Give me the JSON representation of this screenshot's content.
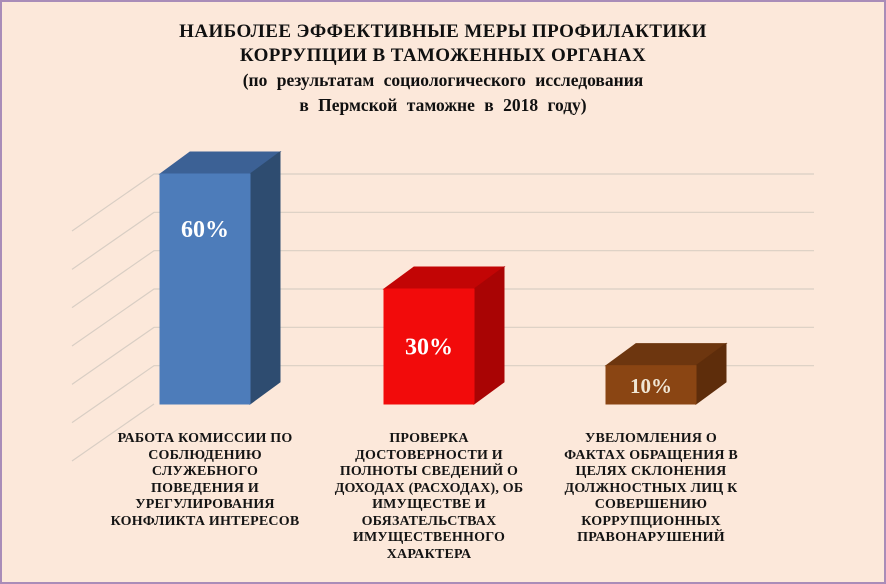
{
  "frame": {
    "background_color": "#fce8da",
    "border_color": "#a98cb8"
  },
  "title": {
    "lines": [
      "НАИБОЛЕЕ ЭФФЕКТИВНЫЕ МЕРЫ ПРОФИЛАКТИКИ",
      "КОРРУПЦИИ В ТАМОЖЕННЫХ ОРГАНАХ",
      "(по результатам социологического исследования",
      "в Пермской таможне в 2018 году)"
    ]
  },
  "chart_data": {
    "type": "bar",
    "style": "3d-perspective",
    "title": "НАИБОЛЕЕ ЭФФЕКТИВНЫЕ МЕРЫ ПРОФИЛАКТИКИ КОРРУПЦИИ В ТАМОЖЕННЫХ ОРГАНАХ (по результатам социологического исследования в Пермской таможне в 2018 году)",
    "categories": [
      "РАБОТА КОМИССИИ ПО СОБЛЮДЕНИЮ СЛУЖЕБНОГО ПОВЕДЕНИЯ И УРЕГУЛИРОВАНИЯ КОНФЛИКТА ИНТЕРЕСОВ",
      "ПРОВЕРКА ДОСТОВЕРНОСТИ И ПОЛНОТЫ СВЕДЕНИЙ О ДОХОДАХ (РАСХОДАХ), ОБ ИМУЩЕСТВЕ И ОБЯЗАТЕЛЬСТВАХ ИМУЩЕСТВЕННОГО ХАРАКТЕРА",
      "УВЕЛОМЛЕНИЯ О ФАКТАХ ОБРАЩЕНИЯ В ЦЕЛЯХ СКЛОНЕНИЯ ДОЛЖНОСТНЫХ ЛИЦ К СОВЕРШЕНИЮ КОРРУПЦИОННЫХ ПРАВОНАРУШЕНИЙ"
    ],
    "categories_lines": [
      [
        "РАБОТА КОМИССИИ ПО",
        "СОБЛЮДЕНИЮ",
        "СЛУЖЕБНОГО",
        "ПОВЕДЕНИЯ И",
        "УРЕГУЛИРОВАНИЯ",
        "КОНФЛИКТА ИНТЕРЕСОВ"
      ],
      [
        "ПРОВЕРКА",
        "ДОСТОВЕРНОСТИ И",
        "ПОЛНОТЫ СВЕДЕНИЙ О",
        "ДОХОДАХ (РАСХОДАХ), ОБ",
        "ИМУЩЕСТВЕ И",
        "ОБЯЗАТЕЛЬСТВАХ",
        "ИМУЩЕСТВЕННОГО",
        "ХАРАКТЕРА"
      ],
      [
        "УВЕЛОМЛЕНИЯ О",
        "ФАКТАХ ОБРАЩЕНИЯ В",
        "ЦЕЛЯХ СКЛОНЕНИЯ",
        "ДОЛЖНОСТНЫХ ЛИЦ К",
        "СОВЕРШЕНИЮ",
        "КОРРУПЦИОННЫХ",
        "ПРАВОНАРУШЕНИЙ"
      ]
    ],
    "values": [
      60,
      30,
      10
    ],
    "value_labels": [
      "60%",
      "30%",
      "10%"
    ],
    "value_label_colors": [
      "#ffffff",
      "#ffffff",
      "#f0e6d4"
    ],
    "value_label_sizes": [
      24,
      24,
      21
    ],
    "bar_colors": [
      {
        "front": "#4d7cba",
        "top": "#3c6195",
        "side": "#2e4c70"
      },
      {
        "front": "#f20b0b",
        "top": "#c20505",
        "side": "#a90404"
      },
      {
        "front": "#8a4513",
        "top": "#6d360f",
        "side": "#5e2d0b"
      }
    ],
    "ylim": [
      0,
      60
    ],
    "grid_step": 10,
    "grid": true,
    "gridline_color": "#d9cec4",
    "category_label_color": "#141414",
    "legend": "none"
  }
}
